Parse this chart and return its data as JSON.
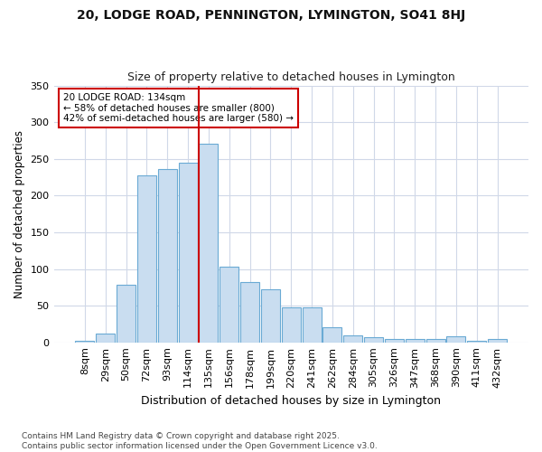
{
  "title": "20, LODGE ROAD, PENNINGTON, LYMINGTON, SO41 8HJ",
  "subtitle": "Size of property relative to detached houses in Lymington",
  "xlabel": "Distribution of detached houses by size in Lymington",
  "ylabel": "Number of detached properties",
  "categories": [
    "8sqm",
    "29sqm",
    "50sqm",
    "72sqm",
    "93sqm",
    "114sqm",
    "135sqm",
    "156sqm",
    "178sqm",
    "199sqm",
    "220sqm",
    "241sqm",
    "262sqm",
    "284sqm",
    "305sqm",
    "326sqm",
    "347sqm",
    "368sqm",
    "390sqm",
    "411sqm",
    "432sqm"
  ],
  "values": [
    2,
    12,
    78,
    228,
    236,
    245,
    270,
    103,
    82,
    72,
    48,
    48,
    20,
    10,
    7,
    5,
    5,
    4,
    8,
    2,
    5
  ],
  "bar_color": "#c9ddf0",
  "bar_edge_color": "#6aaad4",
  "highlight_index": 6,
  "highlight_line_color": "#cc0000",
  "annotation_text": "20 LODGE ROAD: 134sqm\n← 58% of detached houses are smaller (800)\n42% of semi-detached houses are larger (580) →",
  "annotation_box_color": "#ffffff",
  "annotation_box_edge": "#cc0000",
  "footer": "Contains HM Land Registry data © Crown copyright and database right 2025.\nContains public sector information licensed under the Open Government Licence v3.0.",
  "ylim": [
    0,
    350
  ],
  "yticks": [
    0,
    50,
    100,
    150,
    200,
    250,
    300,
    350
  ],
  "background_color": "#ffffff",
  "grid_color": "#d0d8e8"
}
